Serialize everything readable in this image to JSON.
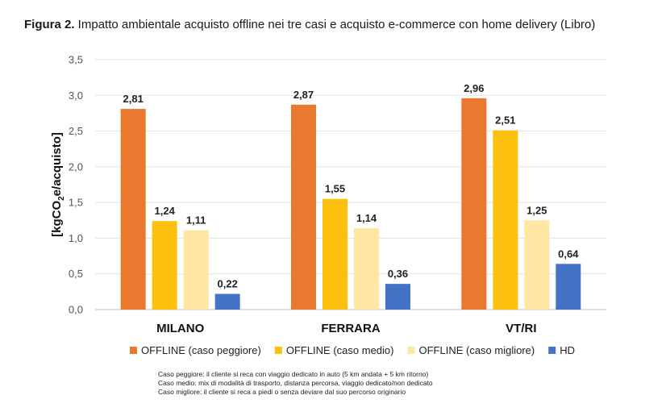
{
  "title": {
    "prefix": "Figura 2.",
    "text": " Impatto ambientale acquisto offline nei tre casi e acquisto e-commerce con home delivery (Libro)"
  },
  "chart_data": {
    "type": "bar",
    "categories": [
      "MILANO",
      "FERRARA",
      "VT/RI"
    ],
    "series": [
      {
        "name": "OFFLINE (caso peggiore)",
        "color": "#E8792F",
        "values": [
          2.81,
          2.87,
          2.96
        ],
        "labels": [
          "2,81",
          "2,87",
          "2,96"
        ]
      },
      {
        "name": "OFFLINE (caso medio)",
        "color": "#FDC00F",
        "values": [
          1.24,
          1.55,
          2.51
        ],
        "labels": [
          "1,24",
          "1,55",
          "2,51"
        ]
      },
      {
        "name": "OFFLINE (caso migliore)",
        "color": "#FFE7A3",
        "values": [
          1.11,
          1.14,
          1.25
        ],
        "labels": [
          "1,11",
          "1,14",
          "1,25"
        ]
      },
      {
        "name": "HD",
        "color": "#4472C4",
        "values": [
          0.22,
          0.36,
          0.64
        ],
        "labels": [
          "0,22",
          "0,36",
          "0,64"
        ]
      }
    ],
    "ylabel": "[kgCO₂e/acquisto]",
    "ylim": [
      0,
      3.5
    ],
    "yticks": [
      0,
      0.5,
      1.0,
      1.5,
      2.0,
      2.5,
      3.0,
      3.5
    ],
    "ytick_labels": [
      "0,0",
      "0,5",
      "1,0",
      "1,5",
      "2,0",
      "2,5",
      "3,0",
      "3,5"
    ],
    "grid": true,
    "legend_position": "bottom"
  },
  "notes": [
    "Caso peggiore: il cliente si reca con viaggio dedicato in auto (5 km andata + 5 km ritorno)",
    "Caso medio: mix di modalità di trasporto, distanza percorsa, viaggio dedicato/non dedicato",
    "Caso migliore: il cliente si reca a piedi o senza deviare dal suo percorso originario"
  ]
}
